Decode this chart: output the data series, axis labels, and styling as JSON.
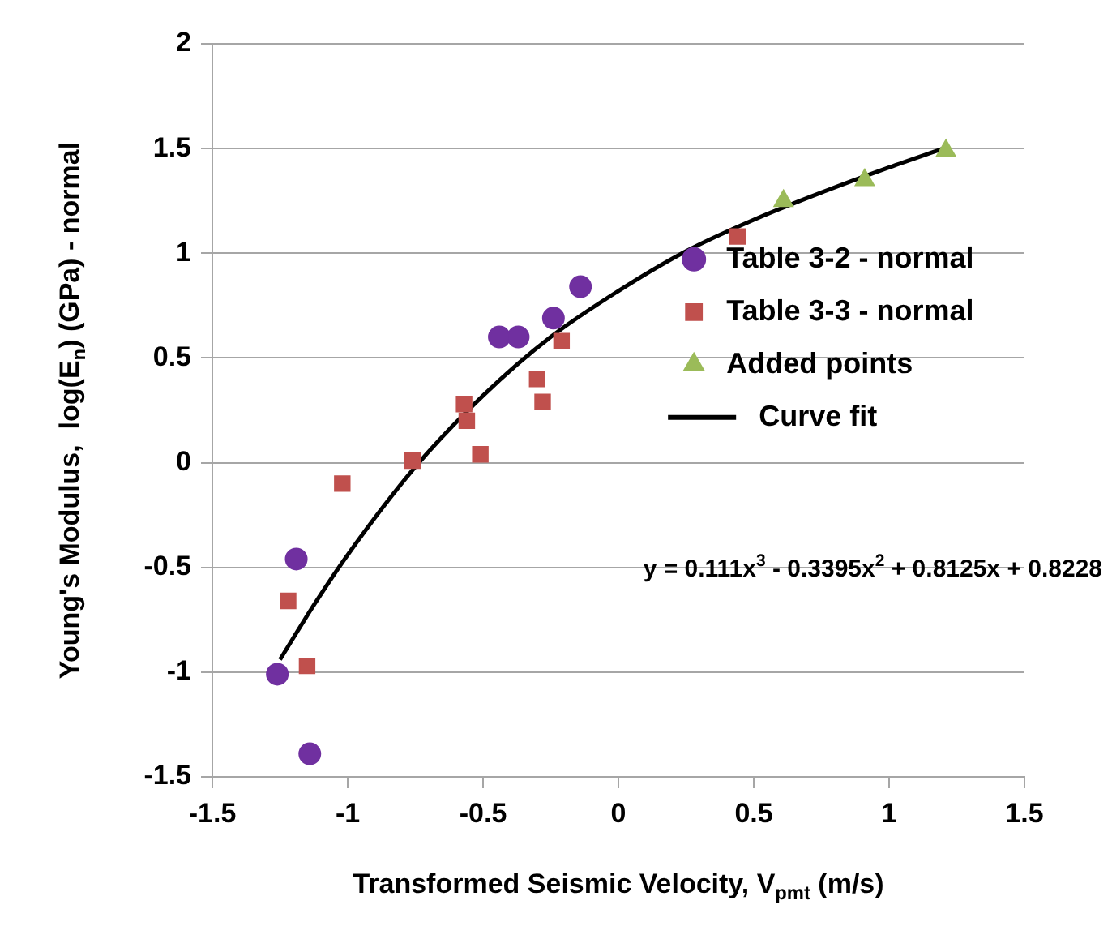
{
  "chart_data": {
    "type": "scatter",
    "xlabel": "Transformed Seismic Velocity, V$_{pmt}$ (m/s)",
    "ylabel": "Young's Modulus,  log(E$_{n}$) (GPa) - normal",
    "xlim": [
      -1.5,
      1.5
    ],
    "xticks": [
      -1.5,
      -1,
      -0.5,
      0,
      0.5,
      1,
      1.5
    ],
    "ylim": [
      -1.5,
      2
    ],
    "yticks": [
      -1.5,
      -1,
      -0.5,
      0,
      0.5,
      1,
      1.5,
      2
    ],
    "grid": "y",
    "legend": "right",
    "series": [
      {
        "name": "Table 3-2 - normal",
        "color": "#7030a0",
        "marker": "circle",
        "x": [
          -1.26,
          -1.19,
          -1.14,
          -0.44,
          -0.37,
          -0.24,
          -0.14
        ],
        "values": [
          -1.01,
          -0.46,
          -1.39,
          0.6,
          0.6,
          0.69,
          0.84
        ]
      },
      {
        "name": "Table 3-3 - normal",
        "color": "#c0504d",
        "marker": "square",
        "x": [
          -1.22,
          -1.15,
          -1.02,
          -0.76,
          -0.57,
          -0.56,
          -0.51,
          -0.3,
          -0.28,
          -0.21,
          0.44
        ],
        "values": [
          -0.66,
          -0.97,
          -0.1,
          0.01,
          0.28,
          0.2,
          0.04,
          0.4,
          0.29,
          0.58,
          1.08
        ]
      },
      {
        "name": "Added points",
        "color": "#9bbb59",
        "marker": "triangle",
        "x": [
          0.61,
          0.91,
          1.21
        ],
        "values": [
          1.25,
          1.35,
          1.49
        ]
      },
      {
        "name": "Curve fit",
        "type": "line",
        "color": "#000000",
        "marker": "none",
        "x": [
          -1.25,
          -1.125,
          -1,
          -0.75,
          -0.5,
          -0.25,
          0,
          0.25,
          0.5,
          0.75,
          1,
          1.2
        ],
        "values": [
          -0.94,
          -0.68,
          -0.44,
          -0.02,
          0.32,
          0.6,
          0.82,
          1.01,
          1.16,
          1.29,
          1.41,
          1.5
        ]
      }
    ],
    "annotations": [
      "y = 0.111x$^{3}$ - 0.3395x$^{2}$ + 0.8125x + 0.8228"
    ]
  }
}
